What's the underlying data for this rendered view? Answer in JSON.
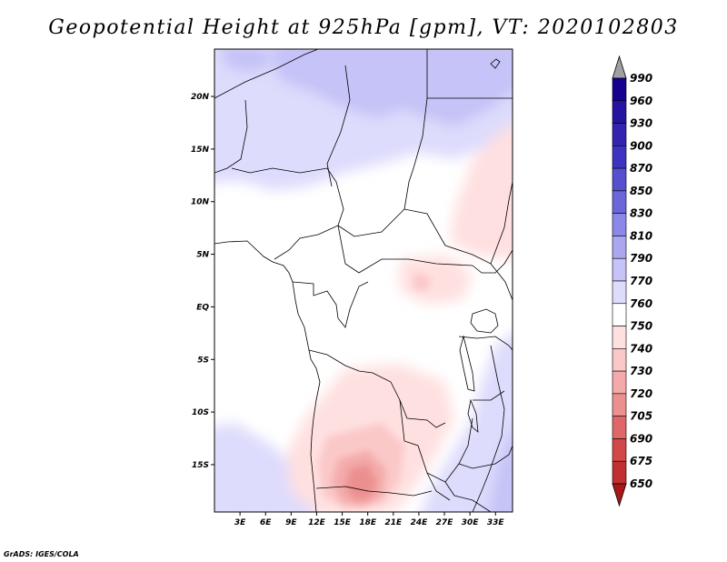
{
  "title": "Geopotential Height at 925hPa [gpm], VT: 2020102803",
  "footer": "GrADS: IGES/COLA",
  "colors": {
    "frame": "#000000",
    "land_outline": "#000000"
  },
  "map": {
    "lon_range": [
      0,
      35
    ],
    "lat_range": [
      -19.5,
      24.5
    ],
    "lon_ticks": [
      {
        "label": "3E",
        "value": 3
      },
      {
        "label": "6E",
        "value": 6
      },
      {
        "label": "9E",
        "value": 9
      },
      {
        "label": "12E",
        "value": 12
      },
      {
        "label": "15E",
        "value": 15
      },
      {
        "label": "18E",
        "value": 18
      },
      {
        "label": "21E",
        "value": 21
      },
      {
        "label": "24E",
        "value": 24
      },
      {
        "label": "27E",
        "value": 27
      },
      {
        "label": "30E",
        "value": 30
      },
      {
        "label": "33E",
        "value": 33
      }
    ],
    "lat_ticks": [
      {
        "label": "20N",
        "value": 20
      },
      {
        "label": "15N",
        "value": 15
      },
      {
        "label": "10N",
        "value": 10
      },
      {
        "label": "5N",
        "value": 5
      },
      {
        "label": "EQ",
        "value": 0
      },
      {
        "label": "5S",
        "value": -5
      },
      {
        "label": "10S",
        "value": -10
      },
      {
        "label": "15S",
        "value": -15
      }
    ]
  },
  "colorbar": {
    "levels": [
      {
        "label": "990",
        "color": "#15008f"
      },
      {
        "label": "960",
        "color": "#2514a0"
      },
      {
        "label": "930",
        "color": "#3223b0"
      },
      {
        "label": "900",
        "color": "#3e33c0"
      },
      {
        "label": "870",
        "color": "#5650d0"
      },
      {
        "label": "850",
        "color": "#6b67db"
      },
      {
        "label": "830",
        "color": "#8c88e8"
      },
      {
        "label": "810",
        "color": "#aaa7f0"
      },
      {
        "label": "790",
        "color": "#c5c3f7"
      },
      {
        "label": "770",
        "color": "#dedcfc"
      },
      {
        "label": "760",
        "color": "#ffffff"
      },
      {
        "label": "750",
        "color": "#ffe0e0"
      },
      {
        "label": "740",
        "color": "#fbc8c8"
      },
      {
        "label": "730",
        "color": "#f4aaaa"
      },
      {
        "label": "720",
        "color": "#ec8f8f"
      },
      {
        "label": "705",
        "color": "#e06767"
      },
      {
        "label": "690",
        "color": "#d24848"
      },
      {
        "label": "675",
        "color": "#c13030"
      },
      {
        "label": "650",
        "color": "#a81818"
      }
    ],
    "top_arrow_color": "#a0a0a0",
    "bottom_arrow_color": "#a81818"
  }
}
